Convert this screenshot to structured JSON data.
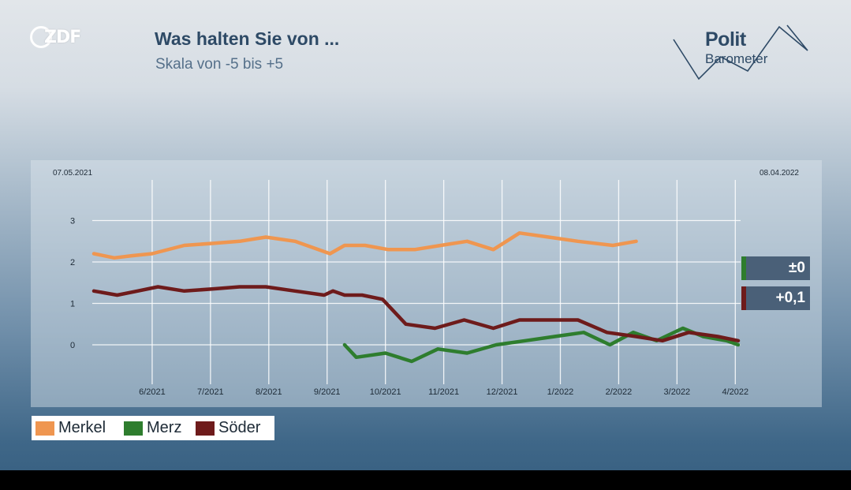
{
  "header": {
    "title": "Was halten Sie von ...",
    "subtitle": "Skala von -5 bis +5",
    "broadcaster": "ZDF",
    "brand_line1": "Polit",
    "brand_line2": "Barometer"
  },
  "chart_data": {
    "type": "line",
    "title": "Was halten Sie von ...",
    "subtitle": "Skala von -5 bis +5",
    "start_date_label": "07.05.2021",
    "end_date_label": "08.04.2022",
    "x_domain": [
      0,
      11.05
    ],
    "x_tick_positions": [
      1,
      2,
      3,
      4,
      5,
      6,
      7,
      8,
      9,
      10,
      11
    ],
    "x_tick_labels": [
      "6/2021",
      "7/2021",
      "8/2021",
      "9/2021",
      "10/2021",
      "11/2021",
      "12/2021",
      "1/2022",
      "2/2022",
      "3/2022",
      "4/2022"
    ],
    "y_ticks": [
      0,
      1,
      2,
      3
    ],
    "ylim": [
      -1,
      3.8
    ],
    "grid": true,
    "legend_position": "bottom-left",
    "series": [
      {
        "name": "Merkel",
        "color": "#ef9650",
        "x": [
          0,
          0.35,
          0.65,
          1.0,
          1.55,
          2.05,
          2.5,
          2.95,
          3.45,
          4.05,
          4.3,
          4.65,
          5.05,
          5.5,
          5.95,
          6.4,
          6.85,
          7.3,
          7.8,
          8.3,
          8.9,
          9.3
        ],
        "y": [
          2.2,
          2.1,
          2.15,
          2.2,
          2.4,
          2.45,
          2.5,
          2.6,
          2.5,
          2.2,
          2.4,
          2.4,
          2.3,
          2.3,
          2.4,
          2.5,
          2.3,
          2.7,
          2.6,
          2.5,
          2.4,
          2.5
        ]
      },
      {
        "name": "Merz",
        "color": "#2e7d2e",
        "x": [
          4.3,
          4.5,
          5.0,
          5.45,
          5.9,
          6.4,
          6.9,
          7.4,
          7.9,
          8.4,
          8.85,
          9.25,
          9.65,
          10.1,
          10.45,
          10.85,
          11.05
        ],
        "y": [
          0.0,
          -0.3,
          -0.2,
          -0.4,
          -0.1,
          -0.2,
          0.0,
          0.1,
          0.2,
          0.3,
          0.0,
          0.3,
          0.1,
          0.4,
          0.2,
          0.1,
          0.0
        ],
        "change_label": "±0"
      },
      {
        "name": "Söder",
        "color": "#6e1b1b",
        "x": [
          0,
          0.4,
          0.75,
          1.1,
          1.55,
          2.05,
          2.5,
          2.95,
          3.45,
          3.95,
          4.1,
          4.3,
          4.6,
          4.95,
          5.35,
          5.85,
          6.35,
          6.85,
          7.3,
          7.8,
          8.3,
          8.8,
          9.3,
          9.75,
          10.2,
          10.7,
          11.05
        ],
        "y": [
          1.3,
          1.2,
          1.3,
          1.4,
          1.3,
          1.35,
          1.4,
          1.4,
          1.3,
          1.2,
          1.3,
          1.2,
          1.2,
          1.1,
          0.5,
          0.4,
          0.6,
          0.4,
          0.6,
          0.6,
          0.6,
          0.3,
          0.2,
          0.1,
          0.3,
          0.2,
          0.1
        ],
        "change_label": "+0,1"
      }
    ]
  },
  "legend": {
    "items": [
      {
        "label": "Merkel",
        "color": "#ef9650"
      },
      {
        "label": "Merz",
        "color": "#2e7d2e"
      },
      {
        "label": "Söder",
        "color": "#6e1b1b"
      }
    ]
  }
}
